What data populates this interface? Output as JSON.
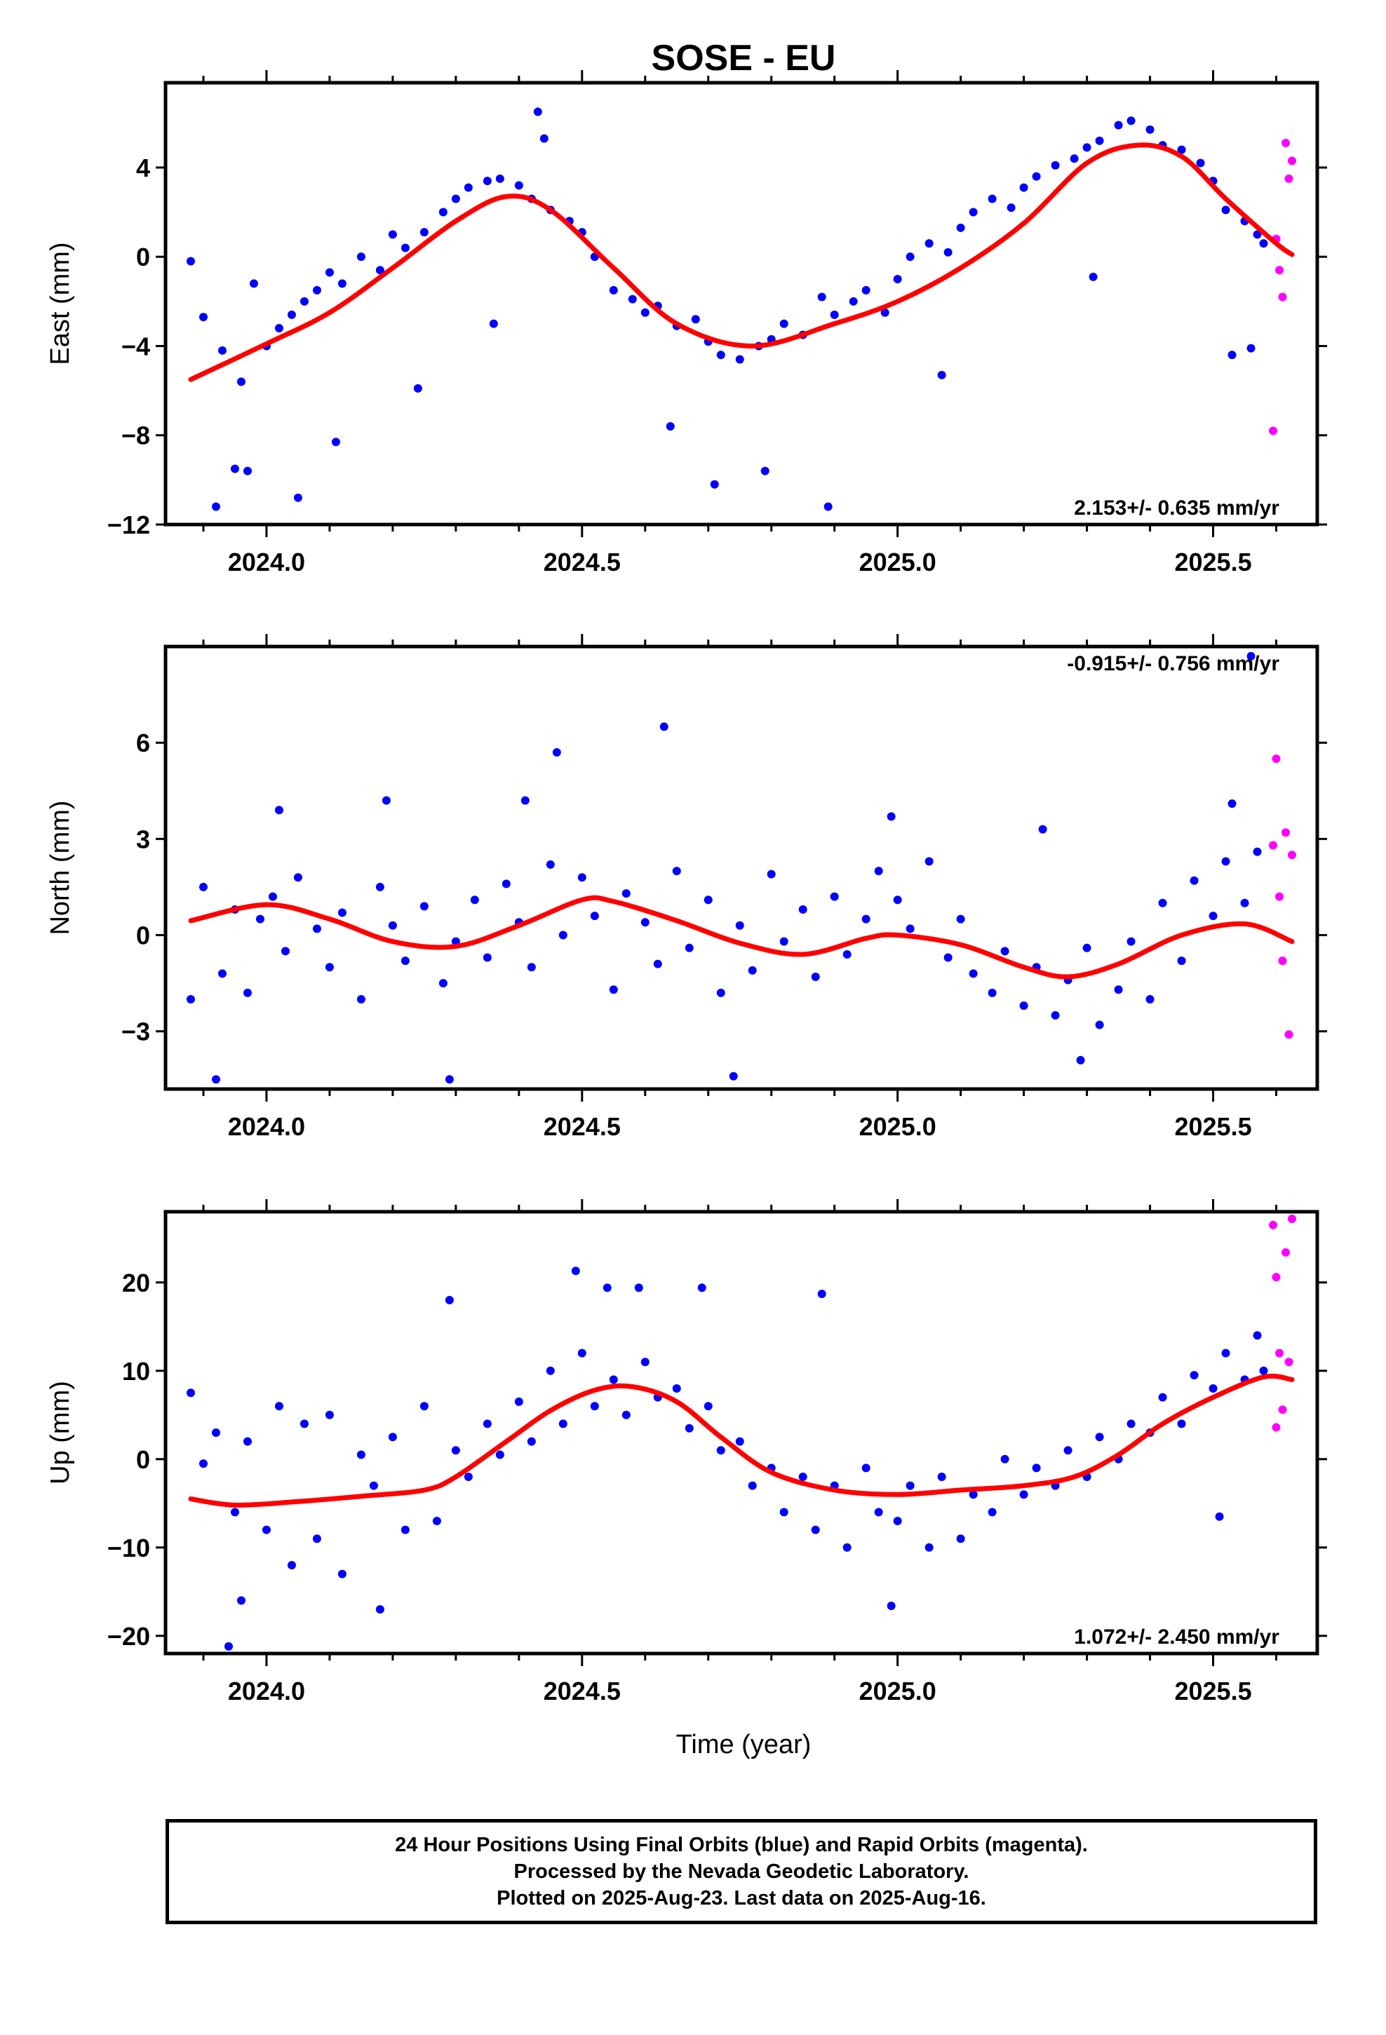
{
  "chart_data": {
    "type": "scatter",
    "title": "SOSE - EU",
    "xlabel": "Time (year)",
    "xlim": [
      2023.84,
      2025.665
    ],
    "xticks": [
      2024.0,
      2024.5,
      2025.0,
      2025.5
    ],
    "xtick_labels": [
      "2024.0",
      "2024.5",
      "2025.0",
      "2025.5"
    ],
    "series_colors": {
      "final": "#0000ff",
      "rapid": "#ff00ff",
      "fit": "#ff0000"
    },
    "panels": [
      {
        "id": "east",
        "ylabel": "East (mm)",
        "ylim": [
          -12,
          7.8
        ],
        "yticks": [
          4,
          0,
          -4,
          -8,
          -12
        ],
        "ytick_labels": [
          "4",
          "0",
          "−4",
          "−8",
          "−12"
        ],
        "rate_label": "2.153+/- 0.635 mm/yr",
        "rate_position": "bottom-right",
        "fit": {
          "x": [
            2023.88,
            2024.0,
            2024.1,
            2024.2,
            2024.3,
            2024.38,
            2024.45,
            2024.55,
            2024.65,
            2024.77,
            2024.9,
            2025.0,
            2025.1,
            2025.2,
            2025.3,
            2025.38,
            2025.45,
            2025.52,
            2025.6,
            2025.625
          ],
          "y": [
            -5.5,
            -3.9,
            -2.5,
            -0.5,
            1.6,
            2.7,
            2.1,
            -0.5,
            -3.0,
            -4.0,
            -3.0,
            -2.0,
            -0.5,
            1.5,
            4.2,
            5.0,
            4.5,
            2.6,
            0.6,
            0.1
          ]
        },
        "final": {
          "x": [
            2023.88,
            2023.9,
            2023.93,
            2023.95,
            2023.96,
            2023.98,
            2024.0,
            2024.02,
            2024.04,
            2024.06,
            2024.08,
            2024.1,
            2024.12,
            2024.15,
            2024.18,
            2024.2,
            2024.22,
            2024.25,
            2024.28,
            2024.3,
            2024.32,
            2024.35,
            2024.37,
            2024.4,
            2024.42,
            2024.44,
            2024.45,
            2024.48,
            2024.5,
            2024.52,
            2024.55,
            2024.58,
            2024.6,
            2024.62,
            2024.65,
            2024.68,
            2024.7,
            2024.72,
            2024.75,
            2024.78,
            2024.8,
            2024.82,
            2024.85,
            2024.88,
            2024.9,
            2024.93,
            2024.95,
            2024.98,
            2025.0,
            2025.02,
            2025.05,
            2025.08,
            2025.1,
            2025.12,
            2025.15,
            2025.18,
            2025.2,
            2025.22,
            2025.25,
            2025.28,
            2025.3,
            2025.32,
            2025.35,
            2025.37,
            2025.4,
            2025.42,
            2025.45,
            2025.48,
            2025.5,
            2025.52,
            2025.55,
            2025.57,
            2025.58,
            2023.92,
            2023.97,
            2024.05,
            2024.11,
            2024.24,
            2024.36,
            2024.43,
            2024.64,
            2024.71,
            2024.79,
            2024.89,
            2025.07,
            2025.31,
            2025.53,
            2025.56
          ],
          "y": [
            -0.2,
            -2.7,
            -4.2,
            -9.5,
            -5.6,
            -1.2,
            -4.0,
            -3.2,
            -2.6,
            -2.0,
            -1.5,
            -0.7,
            -1.2,
            0.0,
            -0.6,
            1.0,
            0.4,
            1.1,
            2.0,
            2.6,
            3.1,
            3.4,
            3.5,
            3.2,
            2.6,
            5.3,
            2.1,
            1.6,
            1.1,
            0.0,
            -1.5,
            -1.9,
            -2.5,
            -2.2,
            -3.1,
            -2.8,
            -3.8,
            -4.4,
            -4.6,
            -4.0,
            -3.7,
            -3.0,
            -3.5,
            -1.8,
            -2.6,
            -2.0,
            -1.5,
            -2.5,
            -1.0,
            0.0,
            0.6,
            0.2,
            1.3,
            2.0,
            2.6,
            2.2,
            3.1,
            3.6,
            4.1,
            4.4,
            4.9,
            5.2,
            5.9,
            6.1,
            5.7,
            5.0,
            4.8,
            4.2,
            3.4,
            2.1,
            1.6,
            1.0,
            0.6,
            -11.2,
            -9.6,
            -10.8,
            -8.3,
            -5.9,
            -3.0,
            6.5,
            -7.6,
            -10.2,
            -9.6,
            -11.2,
            -5.3,
            -0.9,
            -4.4,
            -4.1
          ]
        },
        "rapid": {
          "x": [
            2025.595,
            2025.6,
            2025.605,
            2025.61,
            2025.615,
            2025.62,
            2025.625
          ],
          "y": [
            -7.8,
            0.8,
            -0.6,
            -1.8,
            5.1,
            3.5,
            4.3
          ]
        }
      },
      {
        "id": "north",
        "ylabel": "North (mm)",
        "ylim": [
          -4.8,
          9.0
        ],
        "yticks": [
          6,
          3,
          0,
          -3
        ],
        "ytick_labels": [
          "6",
          "3",
          "0",
          "−3"
        ],
        "rate_label": "-0.915+/- 0.756 mm/yr",
        "rate_position": "top-right",
        "fit": {
          "x": [
            2023.88,
            2024.0,
            2024.1,
            2024.2,
            2024.3,
            2024.4,
            2024.5,
            2024.55,
            2024.65,
            2024.75,
            2024.85,
            2024.95,
            2025.0,
            2025.1,
            2025.2,
            2025.27,
            2025.35,
            2025.45,
            2025.55,
            2025.625
          ],
          "y": [
            0.45,
            0.95,
            0.5,
            -0.2,
            -0.35,
            0.3,
            1.1,
            1.05,
            0.45,
            -0.25,
            -0.6,
            -0.1,
            0.0,
            -0.3,
            -1.0,
            -1.3,
            -0.9,
            0.0,
            0.35,
            -0.2
          ]
        },
        "final": {
          "x": [
            2023.88,
            2023.9,
            2023.93,
            2023.95,
            2023.97,
            2023.99,
            2024.01,
            2024.03,
            2024.05,
            2024.08,
            2024.1,
            2024.12,
            2024.15,
            2024.18,
            2024.2,
            2024.22,
            2024.25,
            2024.28,
            2024.3,
            2024.33,
            2024.35,
            2024.38,
            2024.4,
            2024.42,
            2024.45,
            2024.47,
            2024.5,
            2024.52,
            2024.55,
            2024.57,
            2024.6,
            2024.62,
            2024.65,
            2024.67,
            2024.7,
            2024.72,
            2024.75,
            2024.77,
            2024.8,
            2024.82,
            2024.85,
            2024.87,
            2024.9,
            2024.92,
            2024.95,
            2024.97,
            2025.0,
            2025.02,
            2025.05,
            2025.08,
            2025.1,
            2025.12,
            2025.15,
            2025.17,
            2025.2,
            2025.22,
            2025.25,
            2025.27,
            2025.3,
            2025.32,
            2025.35,
            2025.37,
            2025.4,
            2025.42,
            2025.45,
            2025.47,
            2025.5,
            2025.52,
            2025.55,
            2025.57,
            2023.92,
            2024.02,
            2024.19,
            2024.29,
            2024.41,
            2024.46,
            2024.63,
            2024.74,
            2024.99,
            2025.23,
            2025.29,
            2025.53,
            2025.56
          ],
          "y": [
            -2.0,
            1.5,
            -1.2,
            0.8,
            -1.8,
            0.5,
            1.2,
            -0.5,
            1.8,
            0.2,
            -1.0,
            0.7,
            -2.0,
            1.5,
            0.3,
            -0.8,
            0.9,
            -1.5,
            -0.2,
            1.1,
            -0.7,
            1.6,
            0.4,
            -1.0,
            2.2,
            0.0,
            1.8,
            0.6,
            -1.7,
            1.3,
            0.4,
            -0.9,
            2.0,
            -0.4,
            1.1,
            -1.8,
            0.3,
            -1.1,
            1.9,
            -0.2,
            0.8,
            -1.3,
            1.2,
            -0.6,
            0.5,
            2.0,
            1.1,
            0.2,
            2.3,
            -0.7,
            0.5,
            -1.2,
            -1.8,
            -0.5,
            -2.2,
            -1.0,
            -2.5,
            -1.4,
            -0.4,
            -2.8,
            -1.7,
            -0.2,
            -2.0,
            1.0,
            -0.8,
            1.7,
            0.6,
            2.3,
            1.0,
            2.6,
            -4.5,
            3.9,
            4.2,
            -4.5,
            4.2,
            5.7,
            6.5,
            -4.4,
            3.7,
            3.3,
            -3.9,
            4.1,
            8.7
          ]
        },
        "rapid": {
          "x": [
            2025.595,
            2025.6,
            2025.605,
            2025.61,
            2025.615,
            2025.62,
            2025.625
          ],
          "y": [
            2.8,
            5.5,
            1.2,
            -0.8,
            3.2,
            -3.1,
            2.5
          ]
        }
      },
      {
        "id": "up",
        "ylabel": "Up (mm)",
        "ylim": [
          -22,
          28
        ],
        "yticks": [
          20,
          10,
          0,
          -10,
          -20
        ],
        "ytick_labels": [
          "20",
          "10",
          "0",
          "−10",
          "−20"
        ],
        "rate_label": "1.072+/- 2.450 mm/yr",
        "rate_position": "bottom-right",
        "fit": {
          "x": [
            2023.88,
            2023.95,
            2024.05,
            2024.15,
            2024.25,
            2024.3,
            2024.38,
            2024.45,
            2024.52,
            2024.58,
            2024.65,
            2024.72,
            2024.8,
            2024.9,
            2025.0,
            2025.1,
            2025.2,
            2025.28,
            2025.35,
            2025.42,
            2025.5,
            2025.58,
            2025.625
          ],
          "y": [
            -4.5,
            -5.2,
            -4.8,
            -4.2,
            -3.5,
            -2.0,
            2.0,
            5.5,
            7.8,
            8.2,
            6.5,
            2.5,
            -1.5,
            -3.5,
            -4.0,
            -3.5,
            -3.0,
            -2.0,
            0.5,
            4.0,
            7.0,
            9.3,
            9.0
          ]
        },
        "final": {
          "x": [
            2023.88,
            2023.9,
            2023.92,
            2023.95,
            2023.97,
            2024.0,
            2024.02,
            2024.04,
            2024.06,
            2024.08,
            2024.1,
            2024.12,
            2024.15,
            2024.17,
            2024.2,
            2024.22,
            2024.25,
            2024.27,
            2024.3,
            2024.32,
            2024.35,
            2024.37,
            2024.4,
            2024.42,
            2024.45,
            2024.47,
            2024.5,
            2024.52,
            2024.55,
            2024.57,
            2024.6,
            2024.62,
            2024.65,
            2024.67,
            2024.7,
            2024.72,
            2024.75,
            2024.77,
            2024.8,
            2024.82,
            2024.85,
            2024.87,
            2024.9,
            2024.92,
            2024.95,
            2024.97,
            2025.0,
            2025.02,
            2025.05,
            2025.07,
            2025.1,
            2025.12,
            2025.15,
            2025.17,
            2025.2,
            2025.22,
            2025.25,
            2025.27,
            2025.3,
            2025.32,
            2025.35,
            2025.37,
            2025.4,
            2025.42,
            2025.45,
            2025.47,
            2025.5,
            2025.52,
            2025.55,
            2025.57,
            2025.58,
            2023.94,
            2023.96,
            2024.18,
            2024.29,
            2024.49,
            2024.54,
            2024.59,
            2024.69,
            2024.88,
            2024.99,
            2025.51
          ],
          "y": [
            7.5,
            -0.5,
            3.0,
            -6.0,
            2.0,
            -8.0,
            6.0,
            -12.0,
            4.0,
            -9.0,
            5.0,
            -13.0,
            0.5,
            -3.0,
            2.5,
            -8.0,
            6.0,
            -7.0,
            1.0,
            -2.0,
            4.0,
            0.5,
            6.5,
            2.0,
            10.0,
            4.0,
            12.0,
            6.0,
            9.0,
            5.0,
            11.0,
            7.0,
            8.0,
            3.5,
            6.0,
            1.0,
            2.0,
            -3.0,
            -1.0,
            -6.0,
            -2.0,
            -8.0,
            -3.0,
            -10.0,
            -1.0,
            -6.0,
            -7.0,
            -3.0,
            -10.0,
            -2.0,
            -9.0,
            -4.0,
            -6.0,
            0.0,
            -4.0,
            -1.0,
            -3.0,
            1.0,
            -2.0,
            2.5,
            0.0,
            4.0,
            3.0,
            7.0,
            4.0,
            9.5,
            8.0,
            12.0,
            9.0,
            14.0,
            10.0,
            -21.2,
            -16.0,
            -17.0,
            18.0,
            21.3,
            19.4,
            19.4,
            19.4,
            18.7,
            -16.6,
            -6.5
          ],
          "note": ""
        },
        "rapid": {
          "x": [
            2025.595,
            2025.6,
            2025.605,
            2025.61,
            2025.615,
            2025.62,
            2025.625,
            2025.6
          ],
          "y": [
            26.5,
            20.6,
            12.0,
            5.6,
            23.4,
            11.0,
            27.2,
            3.6
          ]
        }
      }
    ]
  },
  "footer": {
    "line1": "24 Hour Positions Using Final Orbits (blue) and Rapid Orbits (magenta).",
    "line2": "Processed by the Nevada Geodetic Laboratory.",
    "line3": "Plotted on 2025-Aug-23. Last data on 2025-Aug-16."
  }
}
